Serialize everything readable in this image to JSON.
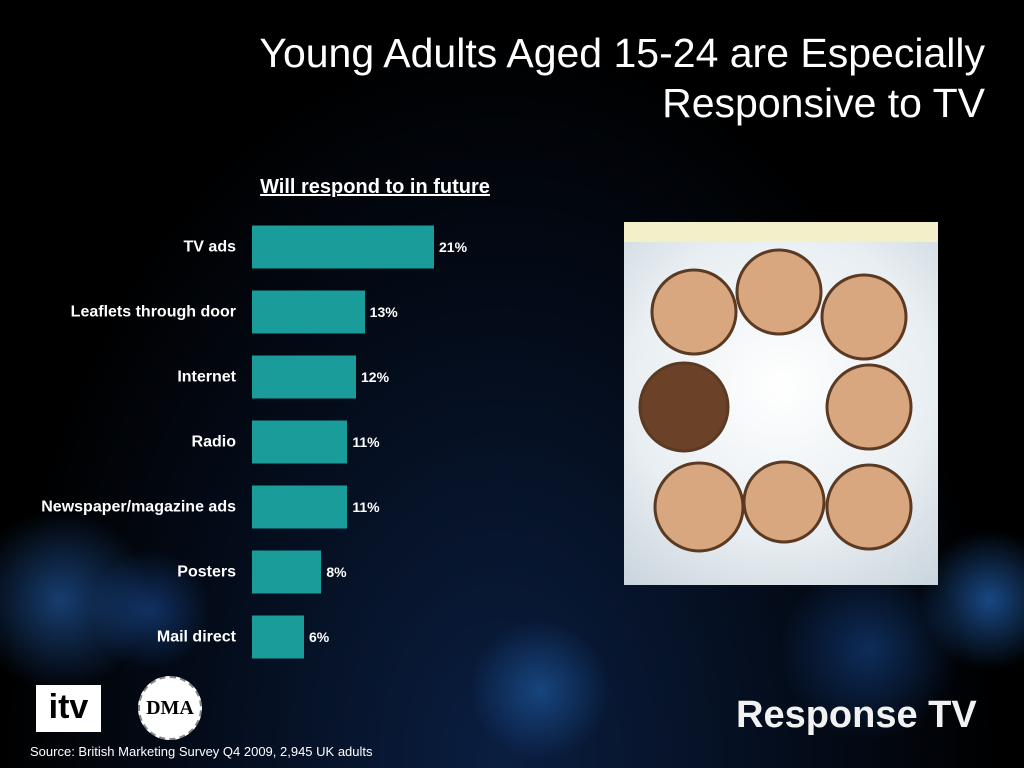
{
  "slide_title": "Young Adults Aged 15-24 are Especially Responsive to TV",
  "source": "Source: British Marketing Survey Q4 2009, 2,945 UK adults",
  "logos": {
    "itv": "itv",
    "dma": "DMA",
    "brand": "Response TV"
  },
  "chart_data": {
    "type": "bar",
    "orientation": "horizontal",
    "title": "Will respond to in future",
    "categories": [
      "TV ads",
      "Leaflets through door",
      "Internet",
      "Radio",
      "Newspaper/magazine ads",
      "Posters",
      "Mail direct"
    ],
    "values": [
      21,
      13,
      12,
      11,
      11,
      8,
      6
    ],
    "value_labels": [
      "21%",
      "13%",
      "12%",
      "11%",
      "11%",
      "8%",
      "6%"
    ],
    "color": "#1a9c9a"
  }
}
